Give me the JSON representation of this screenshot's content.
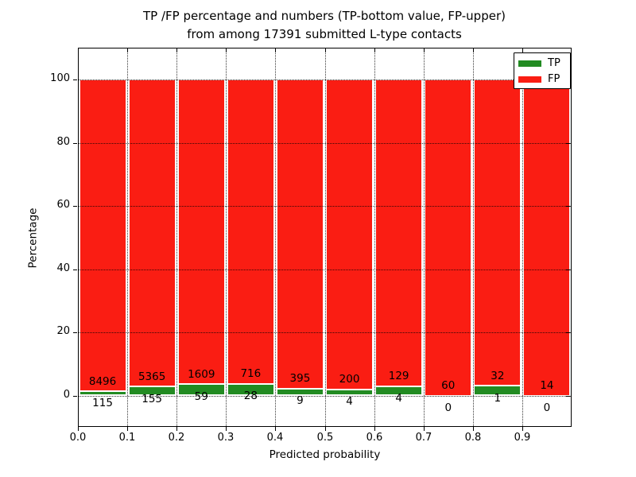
{
  "figure": {
    "kind": "matplotlib-style stacked bar chart"
  },
  "chart_data": {
    "type": "bar",
    "stacked": true,
    "title": "TP /FP percentage and numbers (TP-bottom value, FP-upper) from among 17391 submitted L-type contacts",
    "title_lines": [
      "TP /FP percentage and numbers (TP-bottom value, FP-upper)",
      "from among 17391 submitted L-type contacts"
    ],
    "xlabel": "Predicted probability",
    "ylabel": "Percentage",
    "total_contacts": 17391,
    "x_bin_edges": [
      0.0,
      0.1,
      0.2,
      0.3,
      0.4,
      0.5,
      0.6,
      0.7,
      0.8,
      0.9,
      1.0
    ],
    "x_tick_labels": [
      "0.0",
      "0.1",
      "0.2",
      "0.3",
      "0.4",
      "0.5",
      "0.6",
      "0.7",
      "0.8",
      "0.9"
    ],
    "y_ticks": [
      0,
      20,
      40,
      60,
      80,
      100
    ],
    "y_tick_labels": [
      "0",
      "20",
      "40",
      "60",
      "80",
      "100"
    ],
    "xlim": [
      0.0,
      1.0
    ],
    "ylim": [
      -10,
      110
    ],
    "grid_style": "dotted",
    "bar_edge_color": "#ffffff",
    "series": [
      {
        "name": "TP",
        "color": "#228b22",
        "counts": [
          115,
          155,
          59,
          28,
          9,
          4,
          4,
          0,
          1,
          0
        ]
      },
      {
        "name": "FP",
        "color": "#fa1d13",
        "counts": [
          8496,
          5365,
          1609,
          716,
          395,
          200,
          129,
          60,
          32,
          14
        ]
      }
    ],
    "percent_tp": [
      1.34,
      2.81,
      3.54,
      3.76,
      2.23,
      1.96,
      3.01,
      0.0,
      3.03,
      0.0
    ],
    "percent_total_per_bar": 100,
    "legend_position": "upper right"
  }
}
